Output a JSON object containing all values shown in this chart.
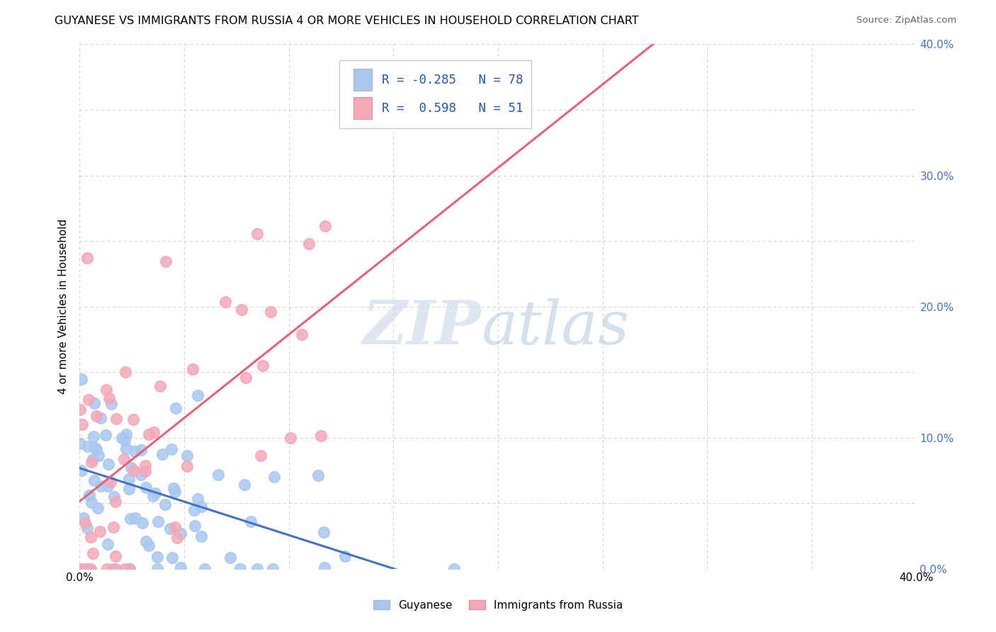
{
  "title": "GUYANESE VS IMMIGRANTS FROM RUSSIA 4 OR MORE VEHICLES IN HOUSEHOLD CORRELATION CHART",
  "source": "Source: ZipAtlas.com",
  "ylabel": "4 or more Vehicles in Household",
  "xlim": [
    0.0,
    0.4
  ],
  "ylim": [
    0.0,
    0.4
  ],
  "xticks": [
    0.0,
    0.05,
    0.1,
    0.15,
    0.2,
    0.25,
    0.3,
    0.35,
    0.4
  ],
  "yticks": [
    0.0,
    0.05,
    0.1,
    0.15,
    0.2,
    0.25,
    0.3,
    0.35,
    0.4
  ],
  "ytick_labels_right": [
    "0.0%",
    "",
    "10.0%",
    "",
    "20.0%",
    "",
    "30.0%",
    "",
    "40.0%"
  ],
  "legend_label1": "Guyanese",
  "legend_label2": "Immigrants from Russia",
  "R1": -0.285,
  "N1": 78,
  "R2": 0.598,
  "N2": 51,
  "color1": "#a8c8f0",
  "color2": "#f4a8b8",
  "trendline1_color": "#4472C4",
  "trendline2_color": "#E8607A",
  "seed": 12345
}
